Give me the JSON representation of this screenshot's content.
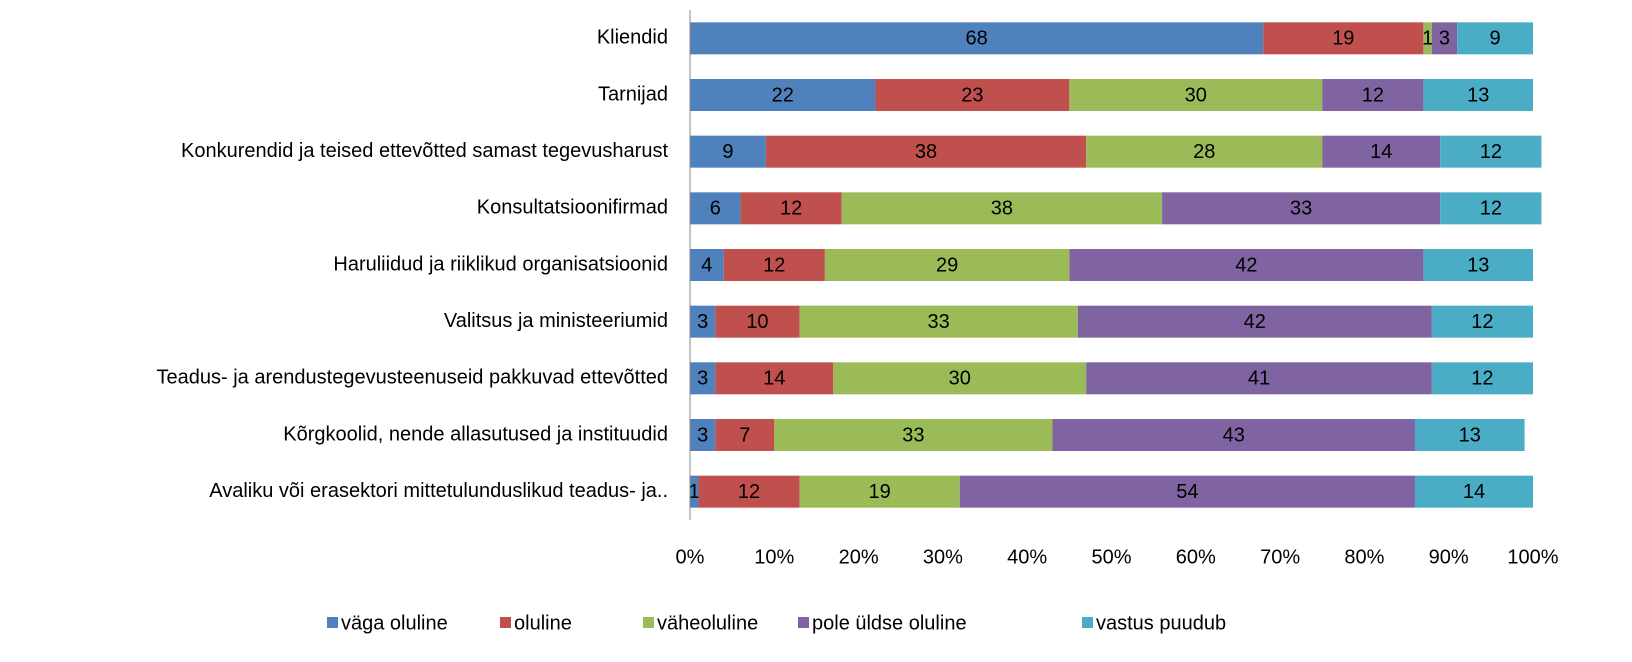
{
  "chart_data": {
    "type": "stacked_bar_horizontal",
    "categories": [
      "Kliendid",
      "Tarnijad",
      "Konkurendid ja teised ettevõtted samast tegevusharust",
      "Konsultatsioonifirmad",
      "Haruliidud ja riiklikud organisatsioonid",
      "Valitsus ja ministeeriumid",
      "Teadus- ja arendustegevusteenuseid pakkuvad ettevõtted",
      "Kõrgkoolid, nende allasutused ja instituudid",
      "Avaliku või erasektori mittetulunduslikud teadus- ja.."
    ],
    "series": [
      {
        "name": "väga oluline",
        "color": "#4f81bd",
        "values": [
          68,
          22,
          9,
          6,
          4,
          3,
          3,
          3,
          1
        ]
      },
      {
        "name": "oluline",
        "color": "#c0504d",
        "values": [
          19,
          23,
          38,
          12,
          12,
          10,
          14,
          7,
          12
        ]
      },
      {
        "name": "väheoluline",
        "color": "#9bbb59",
        "values": [
          1,
          30,
          28,
          38,
          29,
          33,
          30,
          33,
          19
        ]
      },
      {
        "name": "pole üldse oluline",
        "color": "#8064a2",
        "values": [
          3,
          12,
          14,
          33,
          42,
          42,
          41,
          43,
          54
        ]
      },
      {
        "name": "vastus puudub",
        "color": "#4bacc6",
        "values": [
          9,
          13,
          12,
          12,
          13,
          12,
          12,
          13,
          14
        ]
      }
    ],
    "xlim": [
      0,
      100
    ],
    "xticks": [
      {
        "value": 0,
        "label": "0%"
      },
      {
        "value": 10,
        "label": "10%"
      },
      {
        "value": 20,
        "label": "20%"
      },
      {
        "value": 30,
        "label": "30%"
      },
      {
        "value": 40,
        "label": "40%"
      },
      {
        "value": 50,
        "label": "50%"
      },
      {
        "value": 60,
        "label": "60%"
      },
      {
        "value": 70,
        "label": "70%"
      },
      {
        "value": 80,
        "label": "80%"
      },
      {
        "value": 90,
        "label": "90%"
      },
      {
        "value": 100,
        "label": "100%"
      }
    ],
    "legend": "bottom"
  }
}
